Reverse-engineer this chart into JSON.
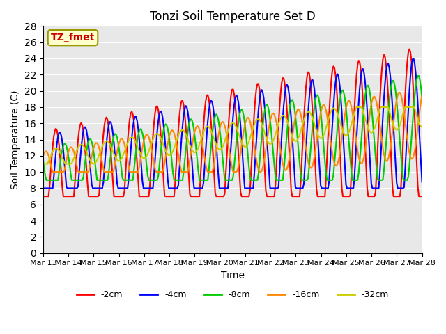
{
  "title": "Tonzi Soil Temperature Set D",
  "xlabel": "Time",
  "ylabel": "Soil Temperature (C)",
  "ylim": [
    0,
    28
  ],
  "yticks": [
    0,
    2,
    4,
    6,
    8,
    10,
    12,
    14,
    16,
    18,
    20,
    22,
    24,
    26,
    28
  ],
  "x_tick_labels": [
    "Mar 13",
    "Mar 14",
    "Mar 15",
    "Mar 16",
    "Mar 17",
    "Mar 18",
    "Mar 19",
    "Mar 20",
    "Mar 21",
    "Mar 22",
    "Mar 23",
    "Mar 24",
    "Mar 25",
    "Mar 26",
    "Mar 27",
    "Mar 28"
  ],
  "series": {
    "-2cm": {
      "color": "#ff0000",
      "linewidth": 1.5
    },
    "-4cm": {
      "color": "#0000ff",
      "linewidth": 1.5
    },
    "-8cm": {
      "color": "#00cc00",
      "linewidth": 1.5
    },
    "-16cm": {
      "color": "#ff8800",
      "linewidth": 1.5
    },
    "-32cm": {
      "color": "#cccc00",
      "linewidth": 1.5
    }
  },
  "legend_label": "TZ_fmet",
  "legend_bg": "#ffffcc",
  "legend_border": "#999900",
  "legend_text_color": "#cc0000",
  "plot_bg_color": "#e8e8e8"
}
